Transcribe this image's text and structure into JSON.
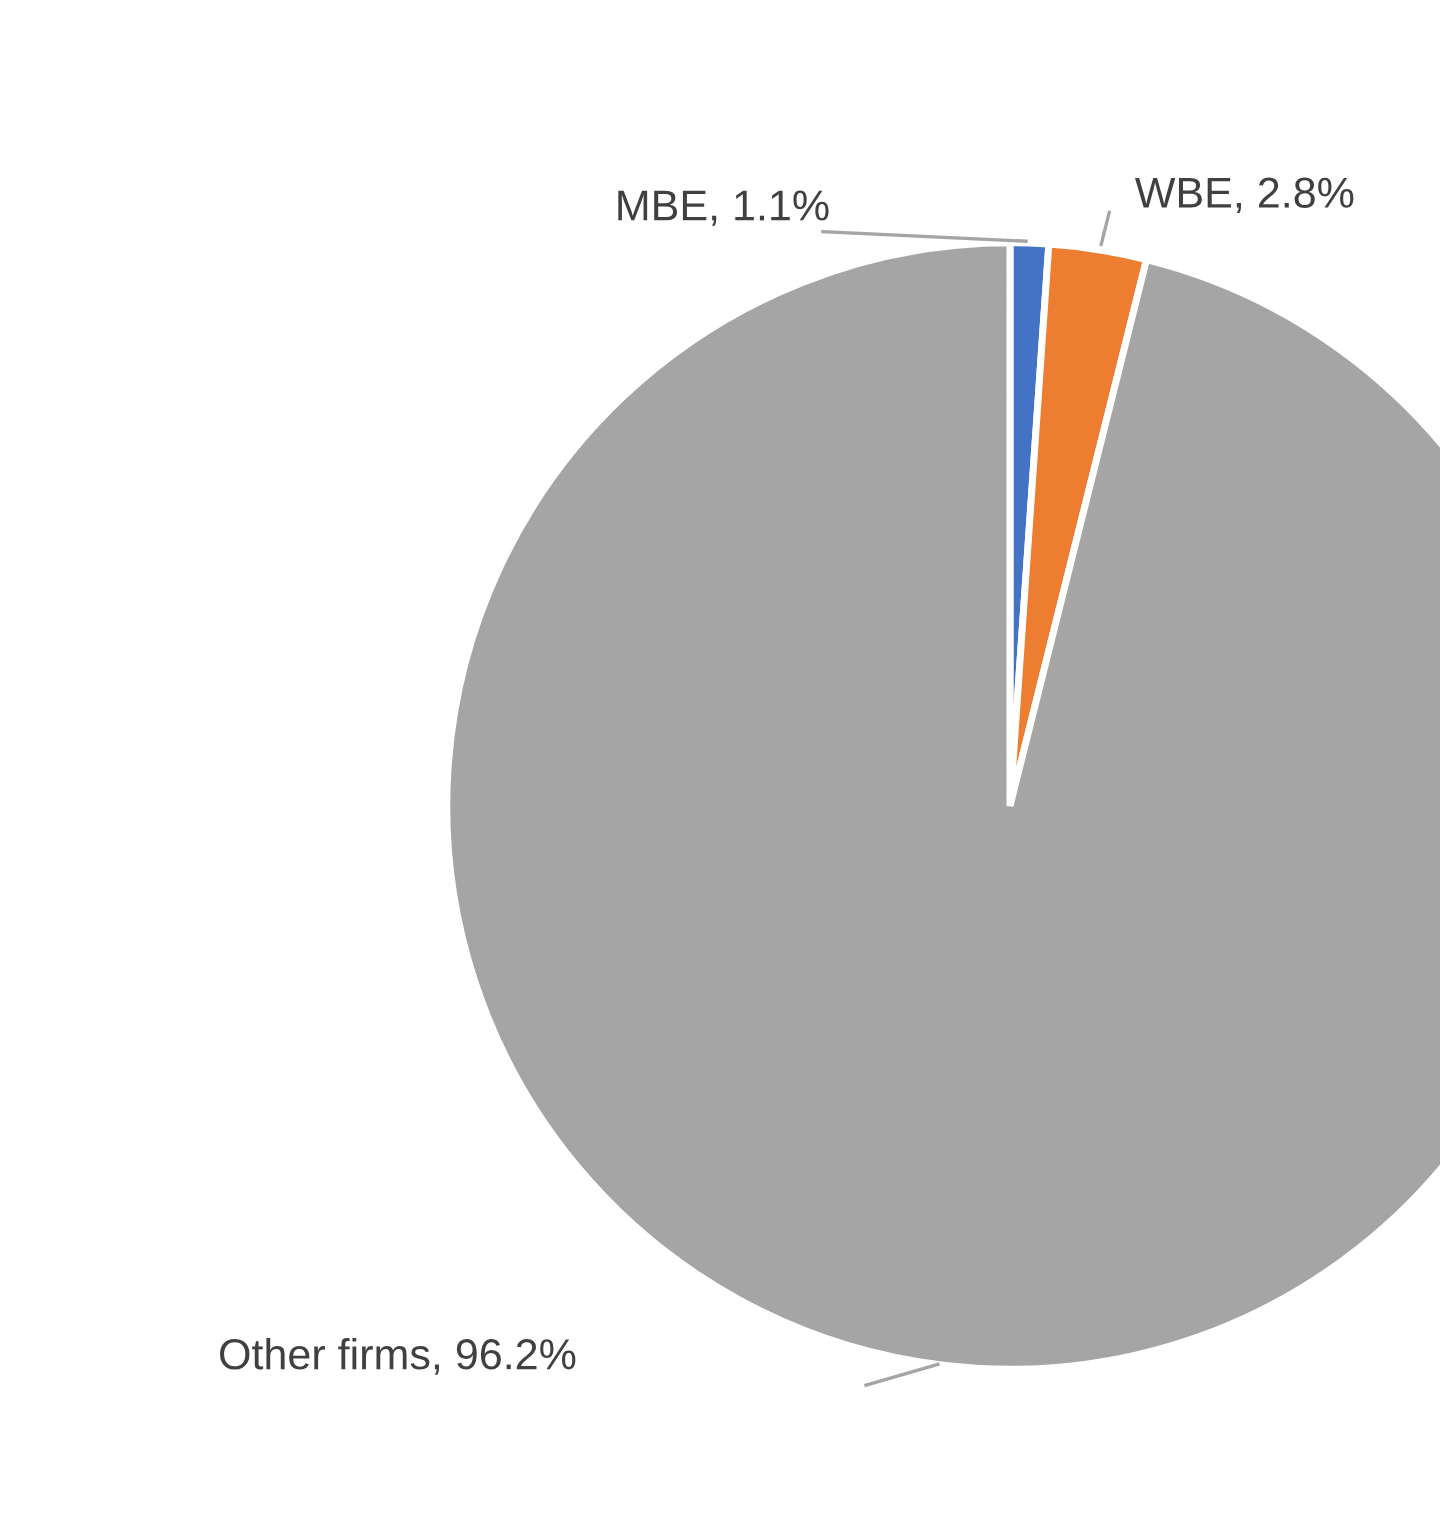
{
  "chart_data": {
    "type": "pie",
    "categories": [
      "MBE",
      "WBE",
      "Other firms"
    ],
    "values": [
      1.1,
      2.8,
      96.2
    ],
    "value_labels": [
      "1.1%",
      "2.8%",
      "96.2%"
    ],
    "colors": [
      "#4472c4",
      "#ed7d31",
      "#a5a5a5"
    ]
  }
}
